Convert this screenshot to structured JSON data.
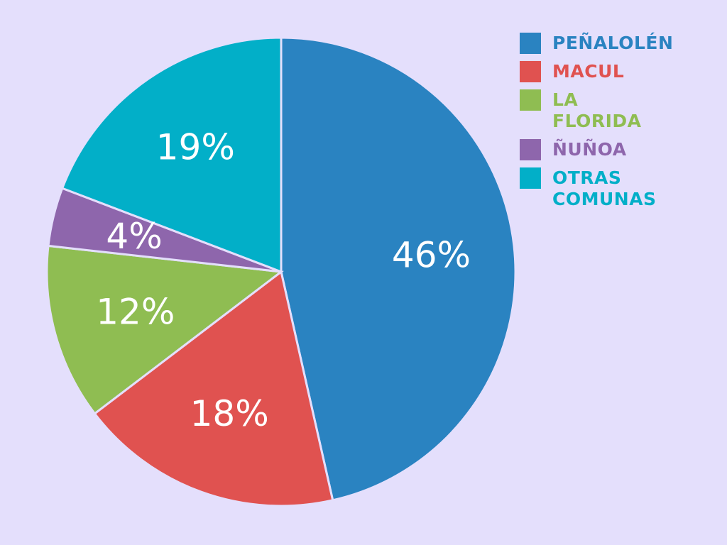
{
  "chart_data": {
    "type": "pie",
    "categories": [
      "PEÑALOLÉN",
      "MACUL",
      "LA FLORIDA",
      "ÑUÑOA",
      "OTRAS COMUNAS"
    ],
    "values": [
      46,
      18,
      12,
      4,
      19
    ],
    "labels": [
      "46%",
      "18%",
      "12%",
      "4%",
      "19%"
    ],
    "colors": [
      "#2a83c1",
      "#e05250",
      "#8fbd52",
      "#8e66ac",
      "#02afc8"
    ],
    "start_angle": "12 o'clock",
    "direction": "clockwise",
    "legend_position": "top-right"
  }
}
